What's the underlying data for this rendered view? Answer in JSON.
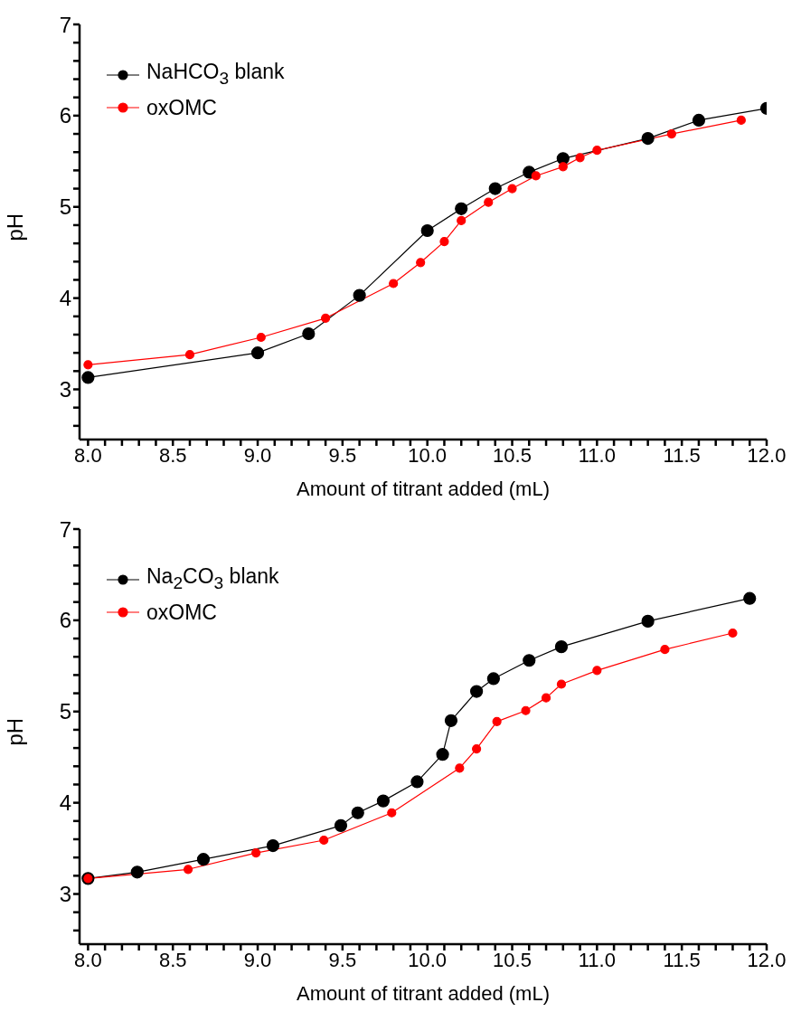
{
  "chart_data": [
    {
      "type": "line",
      "xlabel": "Amount of titrant added (mL)",
      "ylabel": "pH",
      "xlim": [
        7.95,
        12.0
      ],
      "ylim": [
        2.45,
        7
      ],
      "xticks": [
        {
          "value": 8,
          "label": "8.0"
        },
        {
          "value": 8.1,
          "label": null
        },
        {
          "value": 8.2,
          "label": null
        },
        {
          "value": 8.3,
          "label": null
        },
        {
          "value": 8.4,
          "label": null
        },
        {
          "value": 8.5,
          "label": "8.5"
        },
        {
          "value": 8.6,
          "label": null
        },
        {
          "value": 8.7,
          "label": null
        },
        {
          "value": 8.8,
          "label": null
        },
        {
          "value": 8.9,
          "label": null
        },
        {
          "value": 9,
          "label": "9.0"
        },
        {
          "value": 9.1,
          "label": null
        },
        {
          "value": 9.2,
          "label": null
        },
        {
          "value": 9.3,
          "label": null
        },
        {
          "value": 9.4,
          "label": null
        },
        {
          "value": 9.5,
          "label": "9.5"
        },
        {
          "value": 9.6,
          "label": null
        },
        {
          "value": 9.7,
          "label": null
        },
        {
          "value": 9.8,
          "label": null
        },
        {
          "value": 9.9,
          "label": null
        },
        {
          "value": 10,
          "label": "10.0"
        },
        {
          "value": 10.1,
          "label": null
        },
        {
          "value": 10.2,
          "label": null
        },
        {
          "value": 10.3,
          "label": null
        },
        {
          "value": 10.4,
          "label": null
        },
        {
          "value": 10.5,
          "label": "10.5"
        },
        {
          "value": 10.6,
          "label": null
        },
        {
          "value": 10.7,
          "label": null
        },
        {
          "value": 10.8,
          "label": null
        },
        {
          "value": 10.9,
          "label": null
        },
        {
          "value": 11,
          "label": "11.0"
        },
        {
          "value": 11.1,
          "label": null
        },
        {
          "value": 11.2,
          "label": null
        },
        {
          "value": 11.3,
          "label": null
        },
        {
          "value": 11.4,
          "label": null
        },
        {
          "value": 11.5,
          "label": "11.5"
        },
        {
          "value": 11.6,
          "label": null
        },
        {
          "value": 11.7,
          "label": null
        },
        {
          "value": 11.8,
          "label": null
        },
        {
          "value": 11.9,
          "label": null
        },
        {
          "value": 12,
          "label": "12.0"
        }
      ],
      "yticks": [
        {
          "value": 2.6,
          "label": null
        },
        {
          "value": 2.8,
          "label": null
        },
        3,
        {
          "value": 3.2,
          "label": null
        },
        {
          "value": 3.4,
          "label": null
        },
        {
          "value": 3.6,
          "label": null
        },
        {
          "value": 3.8,
          "label": null
        },
        4,
        {
          "value": 4.2,
          "label": null
        },
        {
          "value": 4.4,
          "label": null
        },
        {
          "value": 4.6,
          "label": null
        },
        {
          "value": 4.8,
          "label": null
        },
        5,
        {
          "value": 5.2,
          "label": null
        },
        {
          "value": 5.4,
          "label": null
        },
        {
          "value": 5.6,
          "label": null
        },
        {
          "value": 5.8,
          "label": null
        },
        6,
        {
          "value": 6.2,
          "label": null
        },
        {
          "value": 6.4,
          "label": null
        },
        {
          "value": 6.6,
          "label": null
        },
        {
          "value": 6.8,
          "label": null
        },
        7
      ],
      "legend": "top left",
      "marker": "circle",
      "line_style": "solid",
      "series": [
        {
          "name": "NaHCO$_{3}$ blank",
          "color": "#000000",
          "x": [
            8.0,
            9.0,
            9.3,
            9.6,
            10.0,
            10.2,
            10.4,
            10.6,
            10.8,
            11.3,
            11.6,
            12.0
          ],
          "values": [
            3.13,
            3.4,
            3.61,
            4.03,
            4.74,
            4.98,
            5.2,
            5.38,
            5.53,
            5.75,
            5.95,
            6.08
          ]
        },
        {
          "name": "oxOMC",
          "color": "#ff0000",
          "x": [
            8.0,
            8.6,
            9.02,
            9.4,
            9.8,
            9.96,
            10.1,
            10.2,
            10.36,
            10.5,
            10.64,
            10.8,
            10.9,
            11.0,
            11.44,
            11.85
          ],
          "values": [
            3.27,
            3.38,
            3.57,
            3.78,
            4.16,
            4.39,
            4.62,
            4.85,
            5.05,
            5.2,
            5.34,
            5.44,
            5.54,
            5.62,
            5.8,
            5.95
          ]
        }
      ]
    },
    {
      "type": "line",
      "xlabel": "Amount of titrant added (mL)",
      "ylabel": "pH",
      "xlim": [
        7.95,
        12.0
      ],
      "ylim": [
        2.45,
        7
      ],
      "xticks": [
        {
          "value": 8,
          "label": "8.0"
        },
        {
          "value": 8.1,
          "label": null
        },
        {
          "value": 8.2,
          "label": null
        },
        {
          "value": 8.3,
          "label": null
        },
        {
          "value": 8.4,
          "label": null
        },
        {
          "value": 8.5,
          "label": "8.5"
        },
        {
          "value": 8.6,
          "label": null
        },
        {
          "value": 8.7,
          "label": null
        },
        {
          "value": 8.8,
          "label": null
        },
        {
          "value": 8.9,
          "label": null
        },
        {
          "value": 9,
          "label": "9.0"
        },
        {
          "value": 9.1,
          "label": null
        },
        {
          "value": 9.2,
          "label": null
        },
        {
          "value": 9.3,
          "label": null
        },
        {
          "value": 9.4,
          "label": null
        },
        {
          "value": 9.5,
          "label": "9.5"
        },
        {
          "value": 9.6,
          "label": null
        },
        {
          "value": 9.7,
          "label": null
        },
        {
          "value": 9.8,
          "label": null
        },
        {
          "value": 9.9,
          "label": null
        },
        {
          "value": 10,
          "label": "10.0"
        },
        {
          "value": 10.1,
          "label": null
        },
        {
          "value": 10.2,
          "label": null
        },
        {
          "value": 10.3,
          "label": null
        },
        {
          "value": 10.4,
          "label": null
        },
        {
          "value": 10.5,
          "label": "10.5"
        },
        {
          "value": 10.6,
          "label": null
        },
        {
          "value": 10.7,
          "label": null
        },
        {
          "value": 10.8,
          "label": null
        },
        {
          "value": 10.9,
          "label": null
        },
        {
          "value": 11,
          "label": "11.0"
        },
        {
          "value": 11.1,
          "label": null
        },
        {
          "value": 11.2,
          "label": null
        },
        {
          "value": 11.3,
          "label": null
        },
        {
          "value": 11.4,
          "label": null
        },
        {
          "value": 11.5,
          "label": "11.5"
        },
        {
          "value": 11.6,
          "label": null
        },
        {
          "value": 11.7,
          "label": null
        },
        {
          "value": 11.8,
          "label": null
        },
        {
          "value": 11.9,
          "label": null
        },
        {
          "value": 12,
          "label": "12.0"
        }
      ],
      "yticks": [
        {
          "value": 2.6,
          "label": null
        },
        {
          "value": 2.8,
          "label": null
        },
        3,
        {
          "value": 3.2,
          "label": null
        },
        {
          "value": 3.4,
          "label": null
        },
        {
          "value": 3.6,
          "label": null
        },
        {
          "value": 3.8,
          "label": null
        },
        4,
        {
          "value": 4.2,
          "label": null
        },
        {
          "value": 4.4,
          "label": null
        },
        {
          "value": 4.6,
          "label": null
        },
        {
          "value": 4.8,
          "label": null
        },
        5,
        {
          "value": 5.2,
          "label": null
        },
        {
          "value": 5.4,
          "label": null
        },
        {
          "value": 5.6,
          "label": null
        },
        {
          "value": 5.8,
          "label": null
        },
        6,
        {
          "value": 6.2,
          "label": null
        },
        {
          "value": 6.4,
          "label": null
        },
        {
          "value": 6.6,
          "label": null
        },
        {
          "value": 6.8,
          "label": null
        },
        7
      ],
      "legend": "top left",
      "marker": "circle",
      "line_style": "solid",
      "series": [
        {
          "name": "Na$_{2}$CO$_{3}$ blank",
          "color": "#000000",
          "x": [
            8.0,
            8.29,
            8.68,
            9.09,
            9.49,
            9.59,
            9.74,
            9.94,
            10.09,
            10.14,
            10.29,
            10.39,
            10.6,
            10.79,
            11.3,
            11.9
          ],
          "values": [
            3.17,
            3.24,
            3.38,
            3.53,
            3.75,
            3.89,
            4.02,
            4.23,
            4.53,
            4.9,
            5.22,
            5.36,
            5.56,
            5.71,
            5.99,
            6.24
          ]
        },
        {
          "name": "oxOMC",
          "color": "#ff0000",
          "x": [
            8.0,
            8.59,
            8.99,
            9.39,
            9.79,
            10.19,
            10.29,
            10.41,
            10.58,
            10.7,
            10.79,
            11.0,
            11.4,
            11.8
          ],
          "values": [
            3.17,
            3.27,
            3.45,
            3.59,
            3.89,
            4.38,
            4.59,
            4.89,
            5.01,
            5.15,
            5.3,
            5.45,
            5.68,
            5.86
          ]
        }
      ]
    }
  ]
}
